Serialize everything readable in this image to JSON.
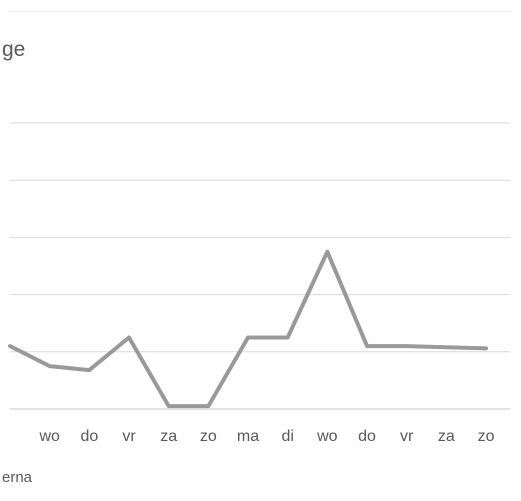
{
  "chart_data": {
    "type": "line",
    "title": "ge",
    "legend": [
      "erna"
    ],
    "legend_position": "bottom",
    "categories": [
      "",
      "wo",
      "do",
      "vr",
      "za",
      "zo",
      "ma",
      "di",
      "wo",
      "do",
      "vr",
      "za",
      "zo"
    ],
    "series": [
      {
        "values": [
          1.1,
          0.75,
          0.68,
          1.25,
          0.05,
          0.05,
          1.25,
          1.25,
          2.75,
          1.1,
          1.1,
          1.08,
          1.06
        ]
      }
    ],
    "ylim": [
      0,
      5
    ],
    "grid": true,
    "colors": {
      "line": "#999999",
      "grid": "#d9d9d9",
      "text": "#595959"
    }
  }
}
